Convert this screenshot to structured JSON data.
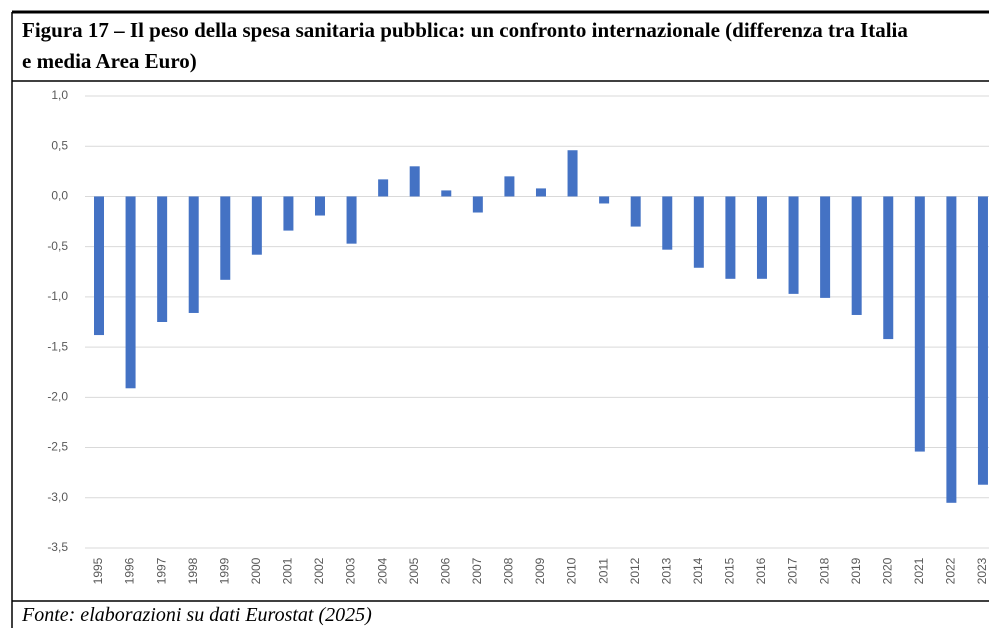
{
  "chart_data": {
    "type": "bar",
    "title": "Figura 17 – Il peso della spesa sanitaria pubblica: un confronto internazionale (differenza tra Italia e media Area Euro)",
    "source": "Fonte: elaborazioni su dati Eurostat (2025)",
    "categories": [
      "1995",
      "1996",
      "1997",
      "1998",
      "1999",
      "2000",
      "2001",
      "2002",
      "2003",
      "2004",
      "2005",
      "2006",
      "2007",
      "2008",
      "2009",
      "2010",
      "2011",
      "2012",
      "2013",
      "2014",
      "2015",
      "2016",
      "2017",
      "2018",
      "2019",
      "2020",
      "2021",
      "2022",
      "2023"
    ],
    "values": [
      -1.38,
      -1.91,
      -1.25,
      -1.16,
      -0.83,
      -0.58,
      -0.34,
      -0.19,
      -0.47,
      0.17,
      0.3,
      0.06,
      -0.16,
      0.2,
      0.08,
      0.46,
      -0.07,
      -0.3,
      -0.53,
      -0.71,
      -0.82,
      -0.82,
      -0.97,
      -1.01,
      -1.18,
      -1.42,
      -2.54,
      -3.05,
      -2.87
    ],
    "color": "#4472c4",
    "ylim": [
      -3.5,
      1.0
    ],
    "yticks": [
      {
        "value": 1.0,
        "label": "1,0"
      },
      {
        "value": 0.5,
        "label": "0,5"
      },
      {
        "value": 0.0,
        "label": "0,0"
      },
      {
        "value": -0.5,
        "label": "-0,5"
      },
      {
        "value": -1.0,
        "label": "-1,0"
      },
      {
        "value": -1.5,
        "label": "-1,5"
      },
      {
        "value": -2.0,
        "label": "-2,0"
      },
      {
        "value": -2.5,
        "label": "-2,5"
      },
      {
        "value": -3.0,
        "label": "-3,0"
      },
      {
        "value": -3.5,
        "label": "-3,5"
      }
    ],
    "grid": true
  }
}
